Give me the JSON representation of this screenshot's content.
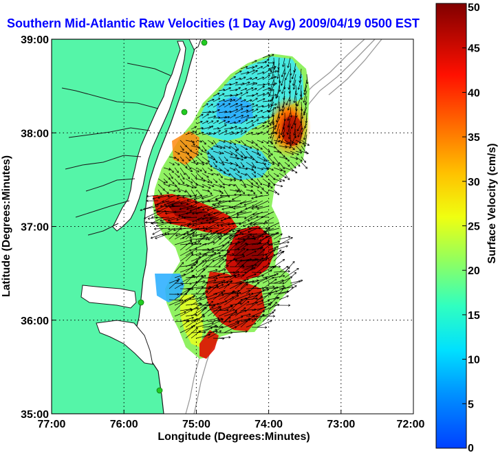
{
  "title": "Southern Mid-Atlantic Raw Velocities (1 Day Avg) 2009/04/19 0500 EST",
  "axes": {
    "xlabel": "Longitude (Degrees:Minutes)",
    "ylabel": "Latitude (Degrees:Minutes)",
    "x_ticks": [
      "77:00",
      "76:00",
      "75:00",
      "74:00",
      "73:00",
      "72:00"
    ],
    "y_ticks": [
      "39:00",
      "38:00",
      "37:00",
      "36:00",
      "35:00"
    ],
    "grid": "dotted"
  },
  "colorbar": {
    "label": "Surface Velocity (cm/s)",
    "ticks": [
      "50",
      "45",
      "40",
      "35",
      "30",
      "25",
      "20",
      "15",
      "10",
      "5",
      "0"
    ],
    "min": 0,
    "max": 50
  },
  "colors": {
    "title": "#0000ff",
    "land": "#55f5a8",
    "coast": "#222222",
    "bathymetry": "#9a9a9a",
    "station": "#22cc22",
    "vector": "#000000"
  }
}
